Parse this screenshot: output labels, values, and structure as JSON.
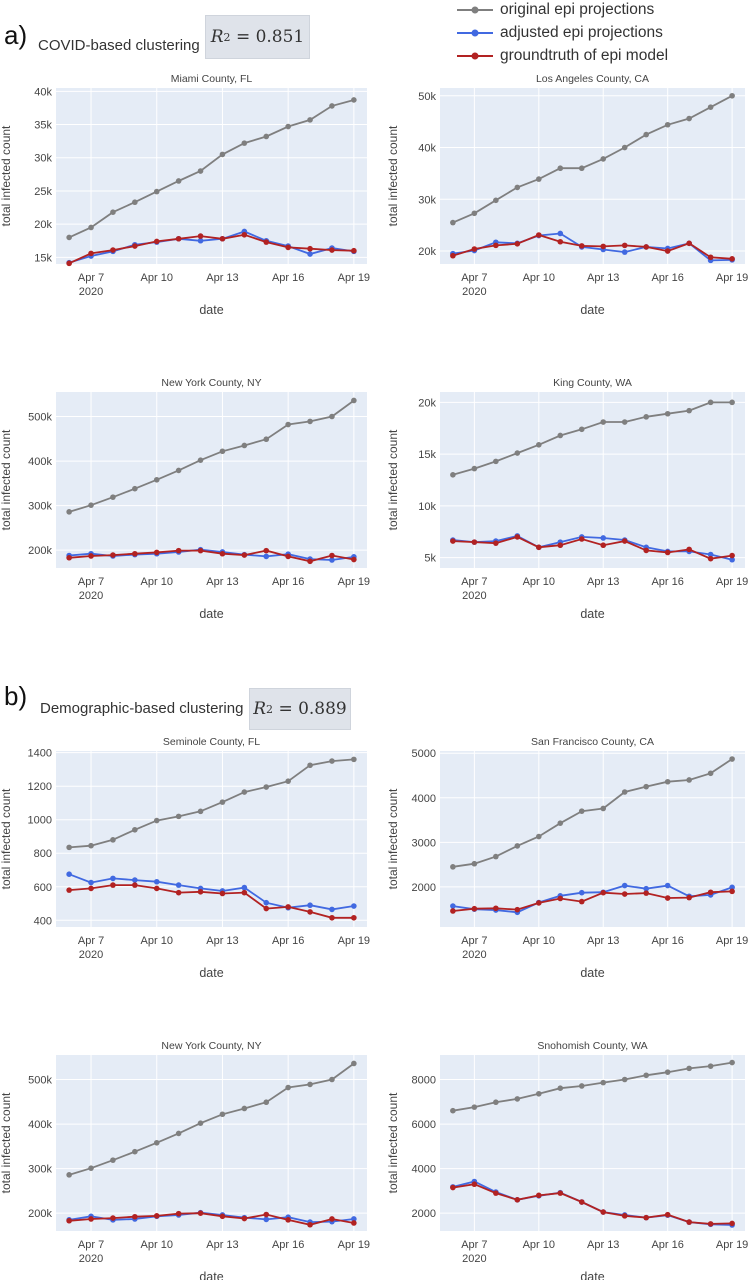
{
  "legend": [
    {
      "label": "original epi projections",
      "color": "#7f7f7f"
    },
    {
      "label": "adjusted epi projections",
      "color": "#4169e1"
    },
    {
      "label": "groundtruth of epi model",
      "color": "#b22222"
    }
  ],
  "sections": {
    "a": {
      "letter": "a)",
      "title": "COVID-based clustering",
      "r2_label": "R",
      "r2_exp": "2",
      "r2_value": "= 0.851"
    },
    "b": {
      "letter": "b)",
      "title": "Demographic-based clustering",
      "r2_label": "R",
      "r2_exp": "2",
      "r2_value": "= 0.889"
    }
  },
  "colors": {
    "original": "#7f7f7f",
    "adjusted": "#4169e1",
    "groundtruth": "#b22222",
    "plot_bg": "#e5ecf6"
  },
  "chart_data": [
    {
      "type": "line",
      "title": "Miami County, FL",
      "xlabel": "date",
      "ylabel": "total infected count",
      "x": [
        "2020-04-06",
        "2020-04-07",
        "2020-04-08",
        "2020-04-09",
        "2020-04-10",
        "2020-04-11",
        "2020-04-12",
        "2020-04-13",
        "2020-04-14",
        "2020-04-15",
        "2020-04-16",
        "2020-04-17",
        "2020-04-18",
        "2020-04-19"
      ],
      "xticks": [
        {
          "date": "2020-04-07",
          "label": "Apr 7",
          "sub": "2020"
        },
        {
          "date": "2020-04-10",
          "label": "Apr 10"
        },
        {
          "date": "2020-04-13",
          "label": "Apr 13"
        },
        {
          "date": "2020-04-16",
          "label": "Apr 16"
        },
        {
          "date": "2020-04-19",
          "label": "Apr 19"
        }
      ],
      "ylim": [
        14000,
        40500
      ],
      "yticks": [
        {
          "v": 15000,
          "label": "15k"
        },
        {
          "v": 20000,
          "label": "20k"
        },
        {
          "v": 25000,
          "label": "25k"
        },
        {
          "v": 30000,
          "label": "30k"
        },
        {
          "v": 35000,
          "label": "35k"
        },
        {
          "v": 40000,
          "label": "40k"
        }
      ],
      "series": [
        {
          "key": "original",
          "values": [
            18000,
            19500,
            21800,
            23300,
            24900,
            26500,
            28000,
            30500,
            32200,
            33200,
            34700,
            35700,
            37800,
            38700
          ]
        },
        {
          "key": "adjusted",
          "values": [
            14200,
            15200,
            15900,
            16900,
            17300,
            17800,
            17500,
            17800,
            18900,
            17500,
            16700,
            15500,
            16400,
            15900
          ]
        },
        {
          "key": "groundtruth",
          "values": [
            14100,
            15600,
            16100,
            16700,
            17400,
            17800,
            18200,
            17800,
            18400,
            17300,
            16500,
            16300,
            16100,
            16000
          ]
        }
      ]
    },
    {
      "type": "line",
      "title": "Los Angeles County, CA",
      "xlabel": "date",
      "ylabel": "total infected count",
      "x": [
        "2020-04-06",
        "2020-04-07",
        "2020-04-08",
        "2020-04-09",
        "2020-04-10",
        "2020-04-11",
        "2020-04-12",
        "2020-04-13",
        "2020-04-14",
        "2020-04-15",
        "2020-04-16",
        "2020-04-17",
        "2020-04-18",
        "2020-04-19"
      ],
      "xticks": [
        {
          "date": "2020-04-07",
          "label": "Apr 7",
          "sub": "2020"
        },
        {
          "date": "2020-04-10",
          "label": "Apr 10"
        },
        {
          "date": "2020-04-13",
          "label": "Apr 13"
        },
        {
          "date": "2020-04-16",
          "label": "Apr 16"
        },
        {
          "date": "2020-04-19",
          "label": "Apr 19"
        }
      ],
      "ylim": [
        17500,
        51500
      ],
      "yticks": [
        {
          "v": 20000,
          "label": "20k"
        },
        {
          "v": 30000,
          "label": "30k"
        },
        {
          "v": 40000,
          "label": "40k"
        },
        {
          "v": 50000,
          "label": "50k"
        }
      ],
      "series": [
        {
          "key": "original",
          "values": [
            25500,
            27300,
            29800,
            32300,
            33900,
            36000,
            36000,
            37800,
            40000,
            42500,
            44400,
            45600,
            47800,
            50000
          ]
        },
        {
          "key": "adjusted",
          "values": [
            19500,
            20100,
            21700,
            21500,
            23000,
            23400,
            20800,
            20300,
            19800,
            20800,
            20500,
            21500,
            18200,
            18300
          ]
        },
        {
          "key": "groundtruth",
          "values": [
            19100,
            20400,
            21100,
            21400,
            23100,
            21800,
            21000,
            20900,
            21100,
            20800,
            20000,
            21500,
            18800,
            18500
          ]
        }
      ]
    },
    {
      "type": "line",
      "title": "New York County, NY",
      "xlabel": "date",
      "ylabel": "total infected count",
      "x": [
        "2020-04-06",
        "2020-04-07",
        "2020-04-08",
        "2020-04-09",
        "2020-04-10",
        "2020-04-11",
        "2020-04-12",
        "2020-04-13",
        "2020-04-14",
        "2020-04-15",
        "2020-04-16",
        "2020-04-17",
        "2020-04-18",
        "2020-04-19"
      ],
      "xticks": [
        {
          "date": "2020-04-07",
          "label": "Apr 7",
          "sub": "2020"
        },
        {
          "date": "2020-04-10",
          "label": "Apr 10"
        },
        {
          "date": "2020-04-13",
          "label": "Apr 13"
        },
        {
          "date": "2020-04-16",
          "label": "Apr 16"
        },
        {
          "date": "2020-04-19",
          "label": "Apr 19"
        }
      ],
      "ylim": [
        160000,
        555000
      ],
      "yticks": [
        {
          "v": 200000,
          "label": "200k"
        },
        {
          "v": 300000,
          "label": "300k"
        },
        {
          "v": 400000,
          "label": "400k"
        },
        {
          "v": 500000,
          "label": "500k"
        }
      ],
      "series": [
        {
          "key": "original",
          "values": [
            286000,
            301000,
            319000,
            338000,
            358000,
            379000,
            402000,
            422000,
            435000,
            449000,
            482000,
            489000,
            500000,
            536000
          ]
        },
        {
          "key": "adjusted",
          "values": [
            188000,
            192000,
            187000,
            190000,
            192000,
            196000,
            201000,
            196000,
            190000,
            186000,
            191000,
            180000,
            178000,
            185000
          ]
        },
        {
          "key": "groundtruth",
          "values": [
            183000,
            187000,
            189000,
            192000,
            195000,
            199000,
            199000,
            192000,
            189000,
            199000,
            186000,
            175000,
            188000,
            179000
          ]
        }
      ]
    },
    {
      "type": "line",
      "title": "King County, WA",
      "xlabel": "date",
      "ylabel": "total infected count",
      "x": [
        "2020-04-06",
        "2020-04-07",
        "2020-04-08",
        "2020-04-09",
        "2020-04-10",
        "2020-04-11",
        "2020-04-12",
        "2020-04-13",
        "2020-04-14",
        "2020-04-15",
        "2020-04-16",
        "2020-04-17",
        "2020-04-18",
        "2020-04-19"
      ],
      "xticks": [
        {
          "date": "2020-04-07",
          "label": "Apr 7",
          "sub": "2020"
        },
        {
          "date": "2020-04-10",
          "label": "Apr 10"
        },
        {
          "date": "2020-04-13",
          "label": "Apr 13"
        },
        {
          "date": "2020-04-16",
          "label": "Apr 16"
        },
        {
          "date": "2020-04-19",
          "label": "Apr 19"
        }
      ],
      "ylim": [
        4000,
        21000
      ],
      "yticks": [
        {
          "v": 5000,
          "label": "5k"
        },
        {
          "v": 10000,
          "label": "10k"
        },
        {
          "v": 15000,
          "label": "15k"
        },
        {
          "v": 20000,
          "label": "20k"
        }
      ],
      "series": [
        {
          "key": "original",
          "values": [
            13000,
            13600,
            14300,
            15100,
            15900,
            16800,
            17400,
            18100,
            18100,
            18600,
            18900,
            19200,
            20000,
            20000
          ]
        },
        {
          "key": "adjusted",
          "values": [
            6700,
            6500,
            6600,
            7100,
            6000,
            6500,
            7000,
            6900,
            6700,
            6000,
            5600,
            5600,
            5300,
            4800
          ]
        },
        {
          "key": "groundtruth",
          "values": [
            6600,
            6500,
            6400,
            7000,
            6000,
            6200,
            6800,
            6200,
            6600,
            5700,
            5500,
            5800,
            4900,
            5200
          ]
        }
      ]
    },
    {
      "type": "line",
      "title": "Seminole County, FL",
      "xlabel": "date",
      "ylabel": "total infected count",
      "x": [
        "2020-04-06",
        "2020-04-07",
        "2020-04-08",
        "2020-04-09",
        "2020-04-10",
        "2020-04-11",
        "2020-04-12",
        "2020-04-13",
        "2020-04-14",
        "2020-04-15",
        "2020-04-16",
        "2020-04-17",
        "2020-04-18",
        "2020-04-19"
      ],
      "xticks": [
        {
          "date": "2020-04-07",
          "label": "Apr 7",
          "sub": "2020"
        },
        {
          "date": "2020-04-10",
          "label": "Apr 10"
        },
        {
          "date": "2020-04-13",
          "label": "Apr 13"
        },
        {
          "date": "2020-04-16",
          "label": "Apr 16"
        },
        {
          "date": "2020-04-19",
          "label": "Apr 19"
        }
      ],
      "ylim": [
        360,
        1410
      ],
      "yticks": [
        {
          "v": 400,
          "label": "400"
        },
        {
          "v": 600,
          "label": "600"
        },
        {
          "v": 800,
          "label": "800"
        },
        {
          "v": 1000,
          "label": "1000"
        },
        {
          "v": 1200,
          "label": "1200"
        },
        {
          "v": 1400,
          "label": "1400"
        }
      ],
      "series": [
        {
          "key": "original",
          "values": [
            835,
            845,
            880,
            940,
            995,
            1020,
            1050,
            1105,
            1165,
            1195,
            1230,
            1325,
            1350,
            1360
          ]
        },
        {
          "key": "adjusted",
          "values": [
            675,
            625,
            650,
            640,
            630,
            610,
            590,
            575,
            595,
            505,
            475,
            490,
            465,
            485
          ]
        },
        {
          "key": "groundtruth",
          "values": [
            580,
            590,
            610,
            610,
            590,
            565,
            570,
            560,
            565,
            470,
            480,
            450,
            415,
            415
          ]
        }
      ]
    },
    {
      "type": "line",
      "title": "San Francisco County, CA",
      "xlabel": "date",
      "ylabel": "total infected count",
      "x": [
        "2020-04-06",
        "2020-04-07",
        "2020-04-08",
        "2020-04-09",
        "2020-04-10",
        "2020-04-11",
        "2020-04-12",
        "2020-04-13",
        "2020-04-14",
        "2020-04-15",
        "2020-04-16",
        "2020-04-17",
        "2020-04-18",
        "2020-04-19"
      ],
      "xticks": [
        {
          "date": "2020-04-07",
          "label": "Apr 7",
          "sub": "2020"
        },
        {
          "date": "2020-04-10",
          "label": "Apr 10"
        },
        {
          "date": "2020-04-13",
          "label": "Apr 13"
        },
        {
          "date": "2020-04-16",
          "label": "Apr 16"
        },
        {
          "date": "2020-04-19",
          "label": "Apr 19"
        }
      ],
      "ylim": [
        1100,
        5050
      ],
      "yticks": [
        {
          "v": 2000,
          "label": "2000"
        },
        {
          "v": 3000,
          "label": "3000"
        },
        {
          "v": 4000,
          "label": "4000"
        },
        {
          "v": 5000,
          "label": "5000"
        }
      ],
      "series": [
        {
          "key": "original",
          "values": [
            2450,
            2520,
            2680,
            2920,
            3130,
            3430,
            3700,
            3760,
            4130,
            4250,
            4360,
            4400,
            4550,
            4870
          ]
        },
        {
          "key": "adjusted",
          "values": [
            1570,
            1500,
            1480,
            1430,
            1650,
            1800,
            1870,
            1880,
            2030,
            1960,
            2030,
            1790,
            1820,
            1990
          ]
        },
        {
          "key": "groundtruth",
          "values": [
            1460,
            1510,
            1520,
            1490,
            1640,
            1740,
            1670,
            1870,
            1840,
            1860,
            1750,
            1760,
            1880,
            1900
          ]
        }
      ]
    },
    {
      "type": "line",
      "title": "New York County, NY",
      "xlabel": "date",
      "ylabel": "total infected count",
      "x": [
        "2020-04-06",
        "2020-04-07",
        "2020-04-08",
        "2020-04-09",
        "2020-04-10",
        "2020-04-11",
        "2020-04-12",
        "2020-04-13",
        "2020-04-14",
        "2020-04-15",
        "2020-04-16",
        "2020-04-17",
        "2020-04-18",
        "2020-04-19"
      ],
      "xticks": [
        {
          "date": "2020-04-07",
          "label": "Apr 7",
          "sub": "2020"
        },
        {
          "date": "2020-04-10",
          "label": "Apr 10"
        },
        {
          "date": "2020-04-13",
          "label": "Apr 13"
        },
        {
          "date": "2020-04-16",
          "label": "Apr 16"
        },
        {
          "date": "2020-04-19",
          "label": "Apr 19"
        }
      ],
      "ylim": [
        160000,
        555000
      ],
      "yticks": [
        {
          "v": 200000,
          "label": "200k"
        },
        {
          "v": 300000,
          "label": "300k"
        },
        {
          "v": 400000,
          "label": "400k"
        },
        {
          "v": 500000,
          "label": "500k"
        }
      ],
      "series": [
        {
          "key": "original",
          "values": [
            286000,
            301000,
            319000,
            338000,
            358000,
            379000,
            402000,
            422000,
            435000,
            449000,
            482000,
            489000,
            500000,
            536000
          ]
        },
        {
          "key": "adjusted",
          "values": [
            185000,
            193000,
            185000,
            187000,
            193000,
            196000,
            201000,
            196000,
            190000,
            186000,
            191000,
            180000,
            181000,
            187000
          ]
        },
        {
          "key": "groundtruth",
          "values": [
            183000,
            187000,
            189000,
            192000,
            194000,
            199000,
            200000,
            193000,
            188000,
            197000,
            185000,
            174000,
            187000,
            178000
          ]
        }
      ]
    },
    {
      "type": "line",
      "title": "Snohomish County, WA",
      "xlabel": "date",
      "ylabel": "total infected count",
      "x": [
        "2020-04-06",
        "2020-04-07",
        "2020-04-08",
        "2020-04-09",
        "2020-04-10",
        "2020-04-11",
        "2020-04-12",
        "2020-04-13",
        "2020-04-14",
        "2020-04-15",
        "2020-04-16",
        "2020-04-17",
        "2020-04-18",
        "2020-04-19"
      ],
      "xticks": [
        {
          "date": "2020-04-07",
          "label": "Apr 7",
          "sub": "2020"
        },
        {
          "date": "2020-04-10",
          "label": "Apr 10"
        },
        {
          "date": "2020-04-13",
          "label": "Apr 13"
        },
        {
          "date": "2020-04-16",
          "label": "Apr 16"
        },
        {
          "date": "2020-04-19",
          "label": "Apr 19"
        }
      ],
      "ylim": [
        1200,
        9100
      ],
      "yticks": [
        {
          "v": 2000,
          "label": "2000"
        },
        {
          "v": 4000,
          "label": "4000"
        },
        {
          "v": 6000,
          "label": "6000"
        },
        {
          "v": 8000,
          "label": "8000"
        }
      ],
      "series": [
        {
          "key": "original",
          "values": [
            6600,
            6760,
            6980,
            7130,
            7360,
            7610,
            7710,
            7860,
            8000,
            8190,
            8330,
            8500,
            8600,
            8760
          ]
        },
        {
          "key": "adjusted",
          "values": [
            3180,
            3420,
            2950,
            2600,
            2780,
            2920,
            2500,
            2050,
            1920,
            1800,
            1910,
            1600,
            1500,
            1470
          ]
        },
        {
          "key": "groundtruth",
          "values": [
            3150,
            3300,
            2900,
            2600,
            2800,
            2900,
            2500,
            2050,
            1880,
            1800,
            1930,
            1600,
            1520,
            1540
          ]
        }
      ]
    }
  ]
}
